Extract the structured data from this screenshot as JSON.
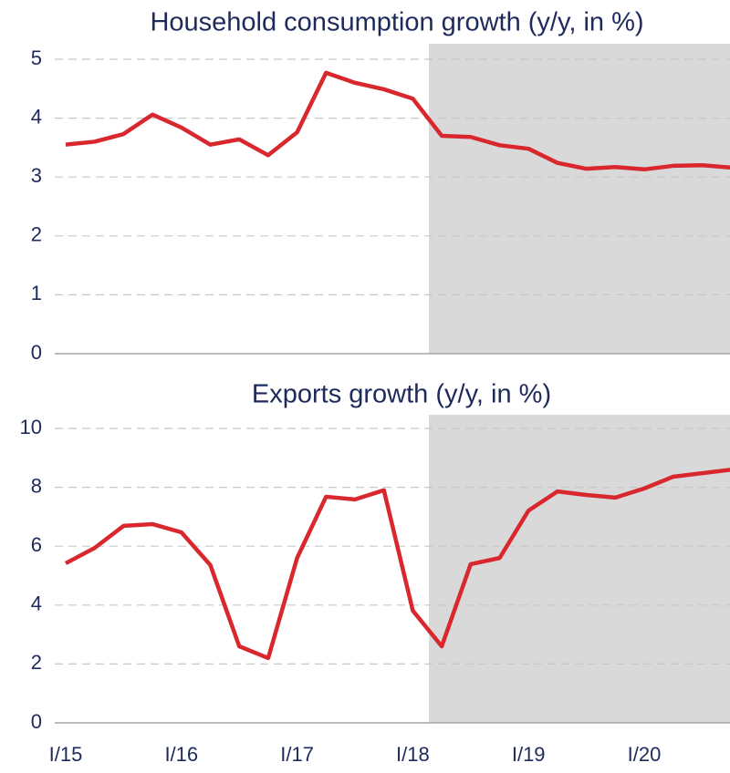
{
  "chart_data": [
    {
      "type": "line",
      "title": "Household consumption growth (y/y, in %)",
      "categories": [
        "I/15",
        null,
        null,
        null,
        "I/16",
        null,
        null,
        null,
        "I/17",
        null,
        null,
        null,
        "I/18",
        null,
        null,
        null,
        "I/19",
        null,
        null,
        null,
        "I/20",
        null,
        null,
        null
      ],
      "series": [
        {
          "color": "#d9272e",
          "values": [
            3.55,
            3.6,
            3.73,
            4.06,
            3.84,
            3.55,
            3.64,
            3.37,
            3.76,
            4.77,
            4.6,
            4.49,
            4.33,
            3.7,
            3.68,
            3.54,
            3.48,
            3.24,
            3.14,
            3.17,
            3.13,
            3.19,
            3.2,
            3.16
          ]
        }
      ],
      "ylim": [
        0,
        5
      ],
      "yticks": [
        0,
        1,
        2,
        3,
        4,
        5
      ],
      "grid": true
    },
    {
      "type": "line",
      "title": "Exports growth (y/y, in %)",
      "categories": [
        "I/15",
        null,
        null,
        null,
        "I/16",
        null,
        null,
        null,
        "I/17",
        null,
        null,
        null,
        "I/18",
        null,
        null,
        null,
        "I/19",
        null,
        null,
        null,
        "I/20",
        null,
        null,
        null
      ],
      "series": [
        {
          "color": "#d9272e",
          "values": [
            5.42,
            5.94,
            6.69,
            6.75,
            6.47,
            5.36,
            2.6,
            2.2,
            5.6,
            7.68,
            7.59,
            7.9,
            3.81,
            2.6,
            5.39,
            5.6,
            7.21,
            7.86,
            7.74,
            7.65,
            7.96,
            8.36,
            8.48,
            8.6
          ]
        }
      ],
      "ylim": [
        0,
        10
      ],
      "yticks": [
        0,
        2,
        4,
        6,
        8,
        10
      ],
      "grid": true
    }
  ]
}
